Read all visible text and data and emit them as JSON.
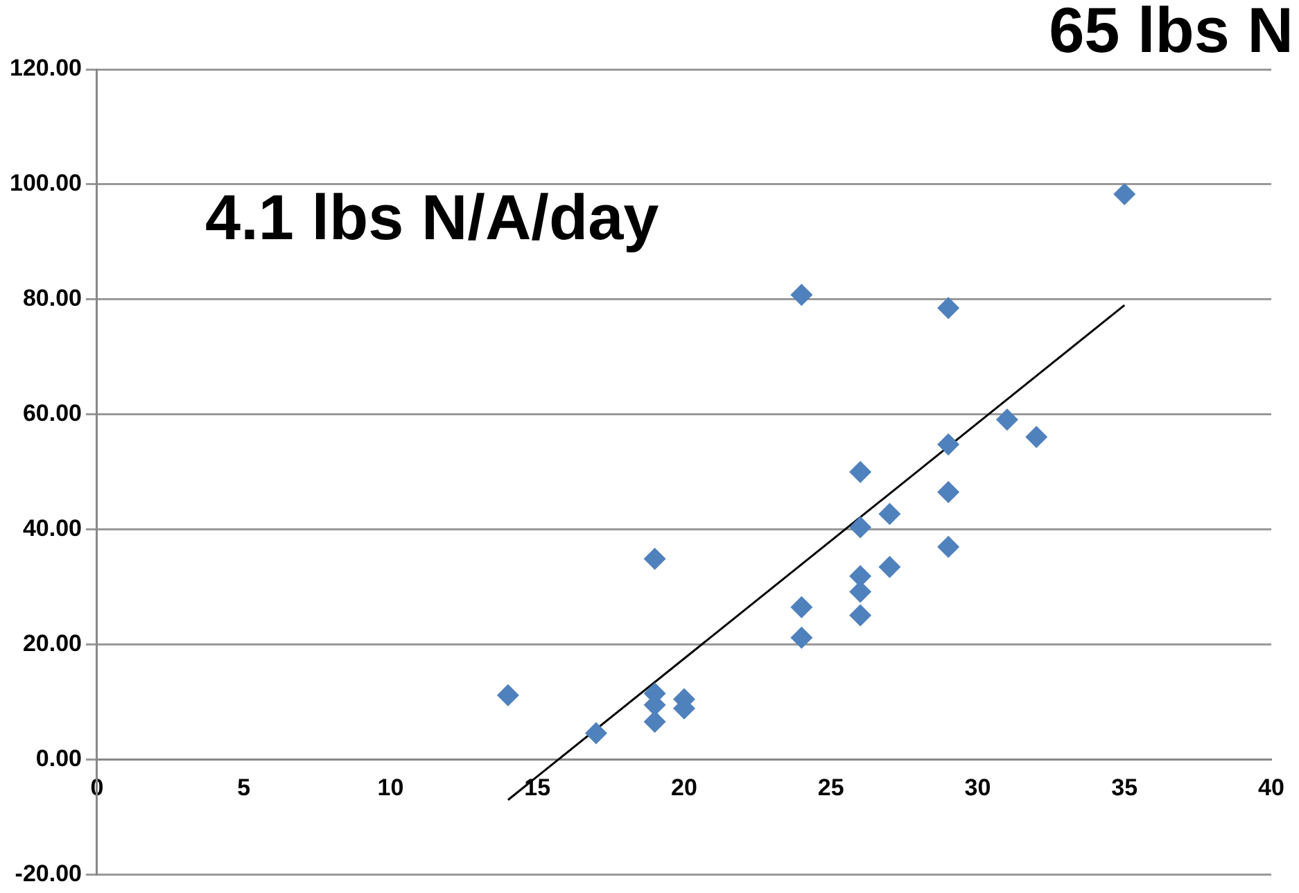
{
  "chart_data": {
    "type": "scatter",
    "annotations": [
      "4.1 lbs N/A/day",
      "65 lbs N"
    ],
    "xlim": [
      0,
      40
    ],
    "xticks": [
      0,
      5,
      10,
      15,
      20,
      25,
      30,
      35,
      40
    ],
    "ylim": [
      -20,
      120
    ],
    "yticks": [
      {
        "value": -20,
        "label": "-20.00"
      },
      {
        "value": 0,
        "label": "0.00"
      },
      {
        "value": 20,
        "label": "20.00"
      },
      {
        "value": 40,
        "label": "40.00"
      },
      {
        "value": 60,
        "label": "60.00"
      },
      {
        "value": 80,
        "label": "80.00"
      },
      {
        "value": 100,
        "label": "100.00"
      },
      {
        "value": 120,
        "label": "120.00"
      }
    ],
    "grid": "y",
    "legend": false,
    "series": [
      {
        "type": "scatter",
        "color": "#4f81bd",
        "marker": "diamond",
        "x": [
          14,
          17,
          19,
          19,
          19,
          19,
          20,
          20,
          24,
          24,
          24,
          26,
          26,
          26,
          26,
          26,
          27,
          27,
          29,
          29,
          29,
          29,
          31,
          32,
          35
        ],
        "values": [
          11.2,
          4.6,
          34.9,
          11.5,
          9.5,
          6.6,
          10.5,
          8.9,
          26.5,
          21.2,
          80.8,
          50,
          40.4,
          31.9,
          29.2,
          25.1,
          42.7,
          33.5,
          78.5,
          54.8,
          46.5,
          37,
          59.1,
          56.1,
          98.3
        ]
      },
      {
        "type": "line",
        "color": "#000000",
        "marker": "none",
        "x": [
          14,
          35
        ],
        "values": [
          -7,
          79
        ]
      }
    ]
  }
}
